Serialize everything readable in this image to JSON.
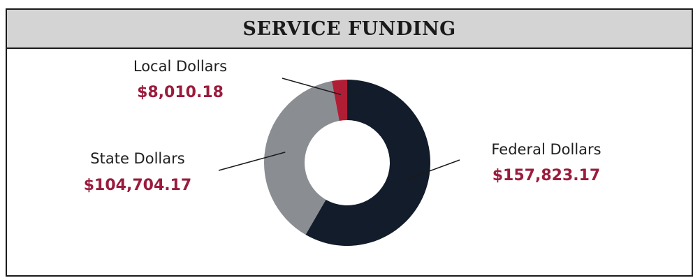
{
  "header": {
    "title": "SERVICE FUNDING"
  },
  "chart_data": {
    "type": "pie",
    "style": "donut",
    "title": "SERVICE FUNDING",
    "categories": [
      "Federal Dollars",
      "State Dollars",
      "Local Dollars"
    ],
    "values": [
      157823.17,
      104704.17,
      8010.18
    ],
    "value_labels": [
      "$157,823.17",
      "$104,704.17",
      "$8,010.18"
    ],
    "colors": [
      "#121c2b",
      "#8a8d91",
      "#b01e36"
    ],
    "start_angle_deg": 0,
    "direction": "clockwise",
    "legend": "none",
    "label_value_color": "#9b1b3c"
  }
}
